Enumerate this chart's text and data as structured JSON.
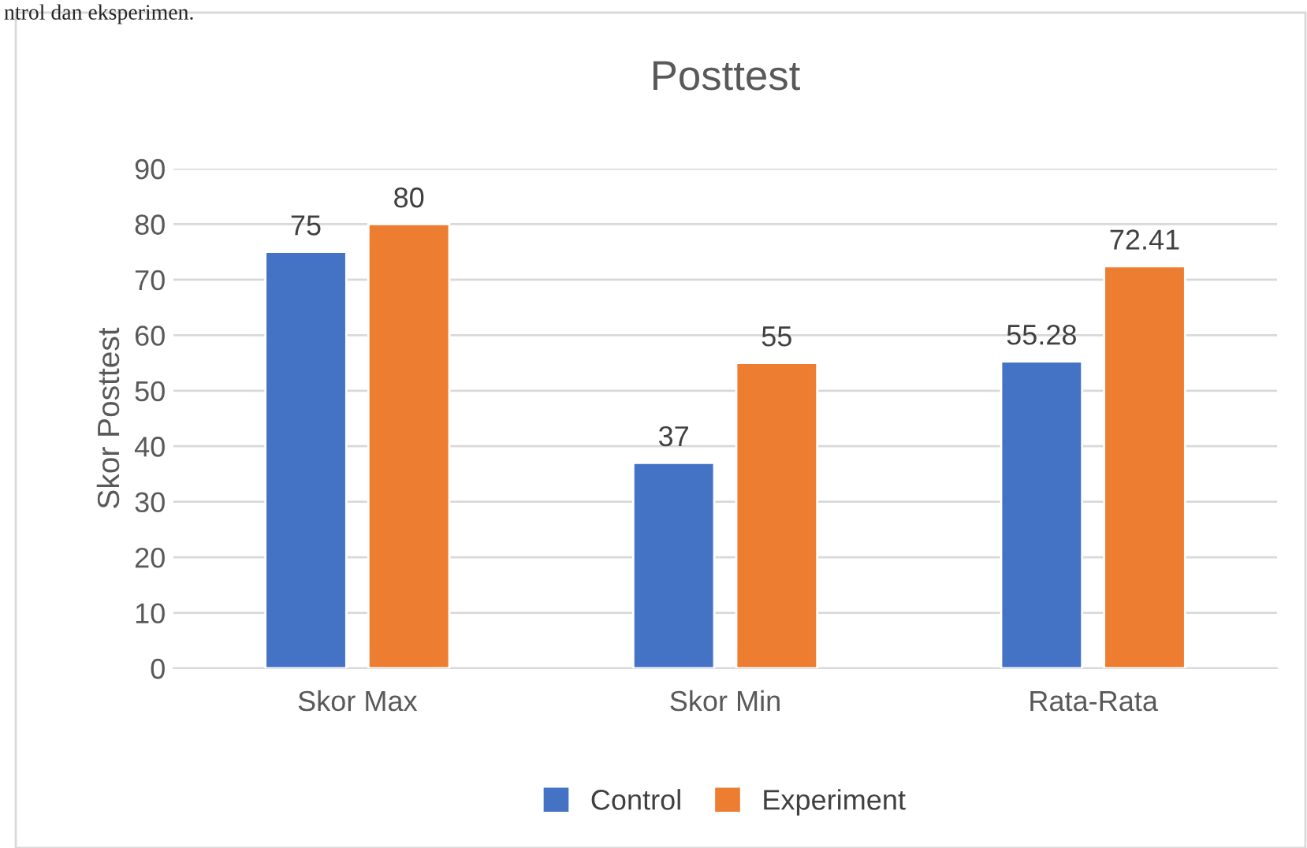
{
  "chart_data": {
    "type": "bar",
    "title": "Posttest",
    "ylabel": "Skor Posttest",
    "categories": [
      "Skor Max",
      "Skor Min",
      "Rata-Rata"
    ],
    "series": [
      {
        "name": "Control",
        "color": "#4472c4",
        "values": [
          75,
          37,
          55.28
        ]
      },
      {
        "name": "Experiment",
        "color": "#ed7d31",
        "values": [
          80,
          55,
          72.41
        ]
      }
    ],
    "ylim": [
      0,
      90
    ],
    "yticks": [
      0,
      10,
      20,
      30,
      40,
      50,
      60,
      70,
      80,
      90
    ],
    "grid": "y",
    "legend": "bottom",
    "data_labels": true,
    "annotations": [
      "ntrol dan eksperimen."
    ]
  }
}
